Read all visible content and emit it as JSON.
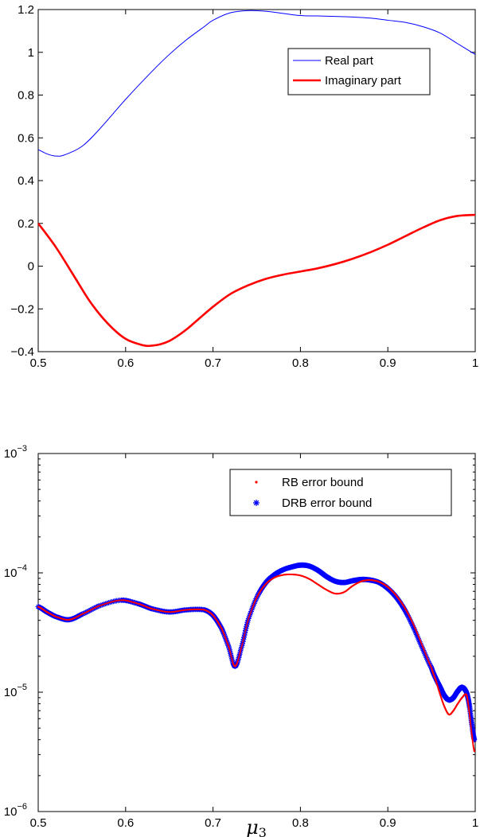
{
  "chart_data": [
    {
      "type": "line",
      "title": "",
      "xlabel": "",
      "ylabel": "",
      "xlim": [
        0.5,
        1.0
      ],
      "ylim": [
        -0.4,
        1.2
      ],
      "xticks": [
        "0.5",
        "0.6",
        "0.7",
        "0.8",
        "0.9",
        "1"
      ],
      "yticks": [
        "-0.4",
        "-0.2",
        "0",
        "0.2",
        "0.4",
        "0.6",
        "0.8",
        "1",
        "1.2"
      ],
      "legend_position": "top-right",
      "grid": false,
      "series": [
        {
          "name": "Real part",
          "color": "#0000ff",
          "x": [
            0.5,
            0.51,
            0.52,
            0.53,
            0.55,
            0.57,
            0.6,
            0.63,
            0.65,
            0.67,
            0.69,
            0.7,
            0.72,
            0.74,
            0.76,
            0.78,
            0.8,
            0.82,
            0.84,
            0.86,
            0.88,
            0.9,
            0.92,
            0.94,
            0.96,
            0.98,
            1.0
          ],
          "values": [
            0.545,
            0.525,
            0.515,
            0.52,
            0.56,
            0.64,
            0.78,
            0.91,
            0.99,
            1.06,
            1.12,
            1.15,
            1.185,
            1.195,
            1.192,
            1.182,
            1.172,
            1.17,
            1.168,
            1.165,
            1.16,
            1.15,
            1.14,
            1.12,
            1.09,
            1.04,
            0.99
          ]
        },
        {
          "name": "Imaginary part",
          "color": "#ff0000",
          "x": [
            0.5,
            0.52,
            0.54,
            0.56,
            0.58,
            0.6,
            0.62,
            0.63,
            0.64,
            0.65,
            0.66,
            0.67,
            0.68,
            0.7,
            0.72,
            0.74,
            0.76,
            0.78,
            0.8,
            0.82,
            0.84,
            0.86,
            0.88,
            0.9,
            0.92,
            0.94,
            0.96,
            0.98,
            1.0
          ],
          "values": [
            0.2,
            0.09,
            -0.04,
            -0.17,
            -0.27,
            -0.34,
            -0.37,
            -0.372,
            -0.365,
            -0.35,
            -0.325,
            -0.295,
            -0.26,
            -0.19,
            -0.13,
            -0.09,
            -0.06,
            -0.04,
            -0.025,
            -0.01,
            0.01,
            0.035,
            0.065,
            0.1,
            0.14,
            0.18,
            0.215,
            0.235,
            0.24
          ]
        }
      ]
    },
    {
      "type": "scatter",
      "title": "",
      "xlabel": "μ3",
      "ylabel": "",
      "xlim": [
        0.5,
        1.0
      ],
      "ylim": [
        1e-06,
        0.001
      ],
      "yscale": "log",
      "xticks": [
        "0.5",
        "0.6",
        "0.7",
        "0.8",
        "0.9",
        "1"
      ],
      "yticks": [
        "1e-06",
        "1e-05",
        "1e-04",
        "1e-03"
      ],
      "legend_position": "top-right",
      "grid": false,
      "series": [
        {
          "name": "RB error bound",
          "color": "#ff0000",
          "marker": "dot",
          "x": [
            0.5,
            0.51,
            0.52,
            0.535,
            0.55,
            0.57,
            0.595,
            0.615,
            0.63,
            0.65,
            0.67,
            0.69,
            0.7,
            0.71,
            0.718,
            0.725,
            0.732,
            0.74,
            0.75,
            0.76,
            0.77,
            0.78,
            0.79,
            0.8,
            0.81,
            0.82,
            0.83,
            0.84,
            0.85,
            0.86,
            0.87,
            0.88,
            0.89,
            0.9,
            0.91,
            0.92,
            0.93,
            0.94,
            0.95,
            0.955,
            0.96,
            0.965,
            0.97,
            0.975,
            0.98,
            0.985,
            0.99,
            0.993,
            0.996,
            0.999
          ],
          "values": [
            5.2e-05,
            4.7e-05,
            4.3e-05,
            4.05e-05,
            4.5e-05,
            5.3e-05,
            5.9e-05,
            5.5e-05,
            5e-05,
            4.7e-05,
            4.9e-05,
            4.9e-05,
            4.4e-05,
            3.4e-05,
            2.4e-05,
            1.65e-05,
            2.3e-05,
            4e-05,
            6.2e-05,
            8e-05,
            9.1e-05,
            9.6e-05,
            9.7e-05,
            9.5e-05,
            8.9e-05,
            8e-05,
            7.2e-05,
            6.7e-05,
            6.9e-05,
            7.8e-05,
            8.5e-05,
            8.7e-05,
            8.4e-05,
            7.6e-05,
            6.4e-05,
            5e-05,
            3.6e-05,
            2.4e-05,
            1.6e-05,
            1.25e-05,
            9.5e-06,
            7.5e-06,
            6.5e-06,
            7e-06,
            8e-06,
            9e-06,
            9.5e-06,
            7e-06,
            4.5e-06,
            3.2e-06
          ]
        },
        {
          "name": "DRB error bound",
          "color": "#0000ff",
          "marker": "asterisk",
          "x": [
            0.5,
            0.51,
            0.52,
            0.535,
            0.55,
            0.57,
            0.595,
            0.615,
            0.63,
            0.65,
            0.67,
            0.69,
            0.7,
            0.71,
            0.718,
            0.725,
            0.732,
            0.74,
            0.75,
            0.76,
            0.77,
            0.78,
            0.79,
            0.8,
            0.81,
            0.82,
            0.83,
            0.84,
            0.85,
            0.86,
            0.87,
            0.88,
            0.89,
            0.9,
            0.91,
            0.92,
            0.93,
            0.94,
            0.95,
            0.955,
            0.96,
            0.965,
            0.97,
            0.975,
            0.98,
            0.985,
            0.99,
            0.993,
            0.996,
            0.999
          ],
          "values": [
            5.2e-05,
            4.7e-05,
            4.3e-05,
            4.05e-05,
            4.5e-05,
            5.3e-05,
            5.9e-05,
            5.5e-05,
            5e-05,
            4.7e-05,
            4.9e-05,
            4.9e-05,
            4.4e-05,
            3.4e-05,
            2.4e-05,
            1.65e-05,
            2.3e-05,
            4e-05,
            6.2e-05,
            8.2e-05,
            9.6e-05,
            0.000106,
            0.000112,
            0.000116,
            0.000114,
            0.000105,
            9.3e-05,
            8.5e-05,
            8.3e-05,
            8.6e-05,
            8.8e-05,
            8.7e-05,
            8.3e-05,
            7.4e-05,
            6.2e-05,
            4.8e-05,
            3.4e-05,
            2.3e-05,
            1.6e-05,
            1.3e-05,
            1.1e-05,
            9.3e-06,
            8.6e-06,
            9e-06,
            1.02e-05,
            1.1e-05,
            1e-05,
            8e-06,
            5.5e-06,
            4e-06
          ]
        }
      ]
    }
  ]
}
